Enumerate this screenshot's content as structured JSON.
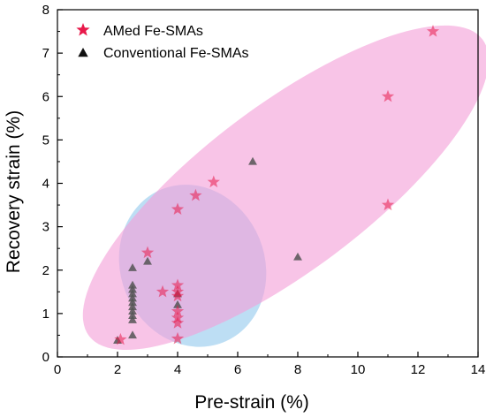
{
  "chart_data": {
    "type": "scatter",
    "xlabel": "Pre-strain (%)",
    "ylabel": "Recovery strain (%)",
    "xlim": [
      0,
      14
    ],
    "ylim": [
      0,
      8
    ],
    "x_ticks": [
      "0",
      "2",
      "4",
      "6",
      "8",
      "10",
      "12",
      "14"
    ],
    "y_ticks": [
      "0",
      "1",
      "2",
      "3",
      "4",
      "5",
      "6",
      "7",
      "8"
    ],
    "grid": false,
    "legend_position": "top-left",
    "series": [
      {
        "name": "AMed Fe-SMAs",
        "marker": "star",
        "color": "#e8194a",
        "points": [
          [
            2.1,
            0.4
          ],
          [
            3.0,
            2.4
          ],
          [
            3.5,
            1.5
          ],
          [
            4.0,
            3.4
          ],
          [
            4.0,
            1.65
          ],
          [
            4.0,
            1.5
          ],
          [
            4.0,
            1.4
          ],
          [
            4.0,
            1.05
          ],
          [
            4.0,
            0.9
          ],
          [
            4.0,
            0.78
          ],
          [
            4.0,
            0.42
          ],
          [
            4.6,
            3.72
          ],
          [
            5.2,
            4.03
          ],
          [
            11.0,
            6.0
          ],
          [
            11.0,
            3.5
          ],
          [
            12.5,
            7.5
          ]
        ]
      },
      {
        "name": "Conventional Fe-SMAs",
        "marker": "triangle",
        "color": "#555555",
        "points": [
          [
            2.0,
            0.38
          ],
          [
            2.5,
            2.05
          ],
          [
            2.5,
            1.65
          ],
          [
            2.5,
            1.55
          ],
          [
            2.5,
            1.45
          ],
          [
            2.5,
            1.35
          ],
          [
            2.5,
            1.25
          ],
          [
            2.5,
            1.15
          ],
          [
            2.5,
            1.05
          ],
          [
            2.5,
            0.95
          ],
          [
            2.5,
            0.85
          ],
          [
            2.5,
            0.5
          ],
          [
            3.0,
            2.2
          ],
          [
            4.0,
            1.2
          ],
          [
            4.0,
            1.45
          ],
          [
            6.5,
            4.5
          ],
          [
            8.0,
            2.3
          ]
        ]
      }
    ],
    "regions": [
      {
        "series": "Conventional Fe-SMAs",
        "color": "#a3d1f0",
        "center": [
          4.5,
          2.1
        ],
        "semi_axes": [
          2.4,
          1.9
        ],
        "rotation_deg": -22
      },
      {
        "series": "AMed Fe-SMAs",
        "color": "#f39fd8",
        "center": [
          7.6,
          3.9
        ],
        "semi_axes": [
          8.2,
          1.9
        ],
        "rotation_deg": -37
      }
    ]
  }
}
